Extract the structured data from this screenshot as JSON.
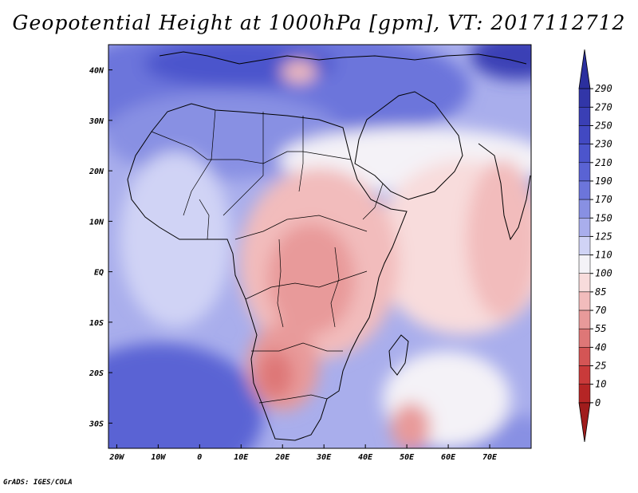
{
  "title": "Geopotential Height at 1000hPa [gpm], VT: 2017112712",
  "credit": "GrADS: IGES/COLA",
  "map": {
    "lon_range": [
      -22,
      80
    ],
    "lat_range": [
      -35,
      45
    ],
    "lon_ticks": [
      {
        "value": -20,
        "label": "20W"
      },
      {
        "value": -10,
        "label": "10W"
      },
      {
        "value": 0,
        "label": "0"
      },
      {
        "value": 10,
        "label": "10E"
      },
      {
        "value": 20,
        "label": "20E"
      },
      {
        "value": 30,
        "label": "30E"
      },
      {
        "value": 40,
        "label": "40E"
      },
      {
        "value": 50,
        "label": "50E"
      },
      {
        "value": 60,
        "label": "60E"
      },
      {
        "value": 70,
        "label": "70E"
      }
    ],
    "lat_ticks": [
      {
        "value": 40,
        "label": "40N"
      },
      {
        "value": 30,
        "label": "30N"
      },
      {
        "value": 20,
        "label": "20N"
      },
      {
        "value": 10,
        "label": "10N"
      },
      {
        "value": 0,
        "label": "EQ"
      },
      {
        "value": -10,
        "label": "10S"
      },
      {
        "value": -20,
        "label": "20S"
      },
      {
        "value": -30,
        "label": "30S"
      }
    ]
  },
  "colorbar": {
    "levels": [
      "290",
      "270",
      "250",
      "230",
      "210",
      "190",
      "170",
      "150",
      "125",
      "110",
      "100",
      "85",
      "70",
      "55",
      "40",
      "25",
      "10",
      "0"
    ],
    "colors": [
      "#2b2f9e",
      "#3236a8",
      "#3a3fb5",
      "#4249c2",
      "#4c55cc",
      "#5a63d4",
      "#6c75db",
      "#8890e3",
      "#a9aeec",
      "#d0d3f5",
      "#f4f2f7",
      "#f8dcdc",
      "#f2bcbc",
      "#e89a9a",
      "#de7777",
      "#d45555",
      "#c93a3a",
      "#b52525",
      "#a01c1c"
    ]
  }
}
